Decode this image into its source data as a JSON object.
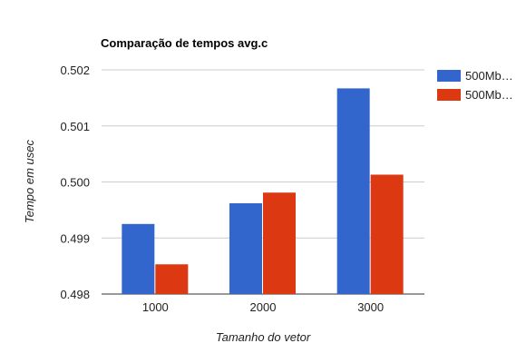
{
  "chart_data": {
    "type": "bar",
    "title": "Comparação de tempos avg.c",
    "xlabel": "Tamanho do vetor",
    "ylabel": "Tempo em usec",
    "categories": [
      "1000",
      "2000",
      "3000"
    ],
    "series": [
      {
        "name": "500Mb…",
        "color": "#3366cc",
        "values": [
          0.49925,
          0.49962,
          0.50167
        ]
      },
      {
        "name": "500Mb…",
        "color": "#dc3912",
        "values": [
          0.49853,
          0.49981,
          0.50013
        ]
      }
    ],
    "ylim": [
      0.498,
      0.502
    ],
    "yticks": [
      "0.502",
      "0.501",
      "0.500",
      "0.499",
      "0.498"
    ],
    "grid": true,
    "legend_position": "right"
  }
}
